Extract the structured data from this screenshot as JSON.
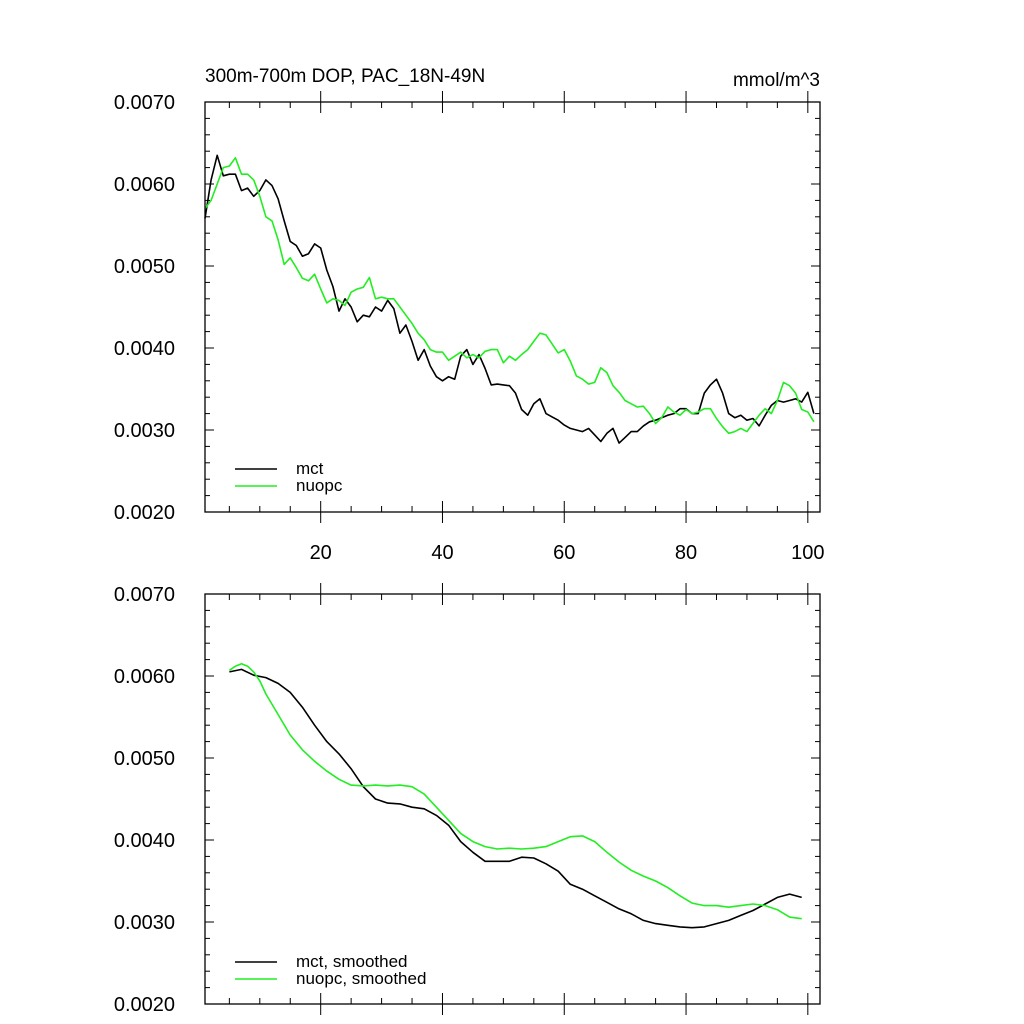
{
  "chart_data": [
    {
      "type": "line",
      "title": "300m-700m DOP, PAC_18N-49N",
      "units": "mmol/m^3",
      "xlim": [
        1,
        102
      ],
      "ylim": [
        0.002,
        0.007
      ],
      "x_ticks": [
        20,
        40,
        60,
        80,
        100
      ],
      "x_tick_labels": [
        "20",
        "40",
        "60",
        "80",
        "100"
      ],
      "y_ticks": [
        0.002,
        0.003,
        0.004,
        0.005,
        0.006,
        0.007
      ],
      "y_tick_labels": [
        "0.0020",
        "0.0030",
        "0.0040",
        "0.0050",
        "0.0060",
        "0.0070"
      ],
      "legend_position": "bottom-left",
      "series": [
        {
          "name": "mct",
          "color": "#000000",
          "x": [
            1,
            2,
            3,
            4,
            5,
            6,
            7,
            8,
            9,
            10,
            11,
            12,
            13,
            14,
            15,
            16,
            17,
            18,
            19,
            20,
            21,
            22,
            23,
            24,
            25,
            26,
            27,
            28,
            29,
            30,
            31,
            32,
            33,
            34,
            35,
            36,
            37,
            38,
            39,
            40,
            41,
            42,
            43,
            44,
            45,
            46,
            47,
            48,
            49,
            50,
            51,
            52,
            53,
            54,
            55,
            56,
            57,
            58,
            59,
            60,
            61,
            62,
            63,
            64,
            65,
            66,
            67,
            68,
            69,
            70,
            71,
            72,
            73,
            74,
            75,
            76,
            77,
            78,
            79,
            80,
            81,
            82,
            83,
            84,
            85,
            86,
            87,
            88,
            89,
            90,
            91,
            92,
            93,
            94,
            95,
            96,
            97,
            98,
            99,
            100,
            101
          ],
          "values": [
            0.00558,
            0.00605,
            0.00635,
            0.0061,
            0.00612,
            0.00612,
            0.00592,
            0.00595,
            0.00585,
            0.00592,
            0.00605,
            0.00598,
            0.00582,
            0.00555,
            0.0053,
            0.00525,
            0.00512,
            0.00515,
            0.00527,
            0.00522,
            0.00495,
            0.00475,
            0.00445,
            0.0046,
            0.0045,
            0.00432,
            0.0044,
            0.00438,
            0.0045,
            0.00445,
            0.00458,
            0.00448,
            0.00418,
            0.00428,
            0.00408,
            0.00385,
            0.00398,
            0.00378,
            0.00365,
            0.0036,
            0.00365,
            0.00362,
            0.0039,
            0.00398,
            0.0038,
            0.00392,
            0.00375,
            0.00355,
            0.00356,
            0.00355,
            0.00354,
            0.00345,
            0.00325,
            0.00318,
            0.00332,
            0.00338,
            0.0032,
            0.00316,
            0.00312,
            0.00306,
            0.00302,
            0.003,
            0.00298,
            0.00302,
            0.00294,
            0.00286,
            0.00296,
            0.00302,
            0.00284,
            0.00291,
            0.00298,
            0.00298,
            0.00305,
            0.0031,
            0.00312,
            0.00315,
            0.00318,
            0.0032,
            0.00326,
            0.00326,
            0.0032,
            0.0032,
            0.00345,
            0.00355,
            0.00362,
            0.00345,
            0.0032,
            0.00315,
            0.00318,
            0.00312,
            0.00314,
            0.00305,
            0.00318,
            0.0033,
            0.00336,
            0.00334,
            0.00336,
            0.00338,
            0.00334,
            0.00346,
            0.0032
          ]
        },
        {
          "name": "nuopc",
          "color": "#22ee22",
          "x": [
            1,
            2,
            3,
            4,
            5,
            6,
            7,
            8,
            9,
            10,
            11,
            12,
            13,
            14,
            15,
            16,
            17,
            18,
            19,
            20,
            21,
            22,
            23,
            24,
            25,
            26,
            27,
            28,
            29,
            30,
            31,
            32,
            33,
            34,
            35,
            36,
            37,
            38,
            39,
            40,
            41,
            42,
            43,
            44,
            45,
            46,
            47,
            48,
            49,
            50,
            51,
            52,
            53,
            54,
            55,
            56,
            57,
            58,
            59,
            60,
            61,
            62,
            63,
            64,
            65,
            66,
            67,
            68,
            69,
            70,
            71,
            72,
            73,
            74,
            75,
            76,
            77,
            78,
            79,
            80,
            81,
            82,
            83,
            84,
            85,
            86,
            87,
            88,
            89,
            90,
            91,
            92,
            93,
            94,
            95,
            96,
            97,
            98,
            99,
            100,
            101
          ],
          "values": [
            0.0057,
            0.0058,
            0.006,
            0.0062,
            0.00622,
            0.00632,
            0.00612,
            0.00612,
            0.00605,
            0.00585,
            0.0056,
            0.00555,
            0.00532,
            0.00502,
            0.0051,
            0.00498,
            0.00485,
            0.00482,
            0.0049,
            0.00472,
            0.00455,
            0.0046,
            0.00458,
            0.00452,
            0.00468,
            0.00472,
            0.00474,
            0.00486,
            0.0046,
            0.00462,
            0.0046,
            0.0046,
            0.0045,
            0.0044,
            0.0043,
            0.00418,
            0.0041,
            0.00398,
            0.00395,
            0.00395,
            0.00385,
            0.0039,
            0.00395,
            0.00388,
            0.00392,
            0.00388,
            0.00396,
            0.00398,
            0.00398,
            0.00382,
            0.0039,
            0.00385,
            0.00392,
            0.00398,
            0.00408,
            0.00418,
            0.00416,
            0.00405,
            0.00394,
            0.00398,
            0.00384,
            0.00366,
            0.00362,
            0.00356,
            0.00358,
            0.00376,
            0.0037,
            0.00354,
            0.00346,
            0.00336,
            0.00332,
            0.00328,
            0.00329,
            0.0032,
            0.00308,
            0.00315,
            0.00328,
            0.00322,
            0.00318,
            0.00325,
            0.0032,
            0.00322,
            0.00326,
            0.00326,
            0.00314,
            0.00304,
            0.00296,
            0.00298,
            0.00302,
            0.00298,
            0.00308,
            0.00318,
            0.00326,
            0.0032,
            0.00336,
            0.00358,
            0.00354,
            0.00345,
            0.00325,
            0.00322,
            0.0031
          ]
        }
      ]
    },
    {
      "type": "line",
      "title": "",
      "units": "",
      "xlim": [
        1,
        102
      ],
      "ylim": [
        0.002,
        0.007
      ],
      "x_ticks": [
        20,
        40,
        60,
        80,
        100
      ],
      "x_tick_labels": [],
      "y_ticks": [
        0.002,
        0.003,
        0.004,
        0.005,
        0.006,
        0.007
      ],
      "y_tick_labels": [
        "0.0020",
        "0.0030",
        "0.0040",
        "0.0050",
        "0.0060",
        "0.0070"
      ],
      "legend_position": "bottom-left",
      "series": [
        {
          "name": "mct, smoothed",
          "color": "#000000",
          "x": [
            5,
            7,
            9,
            11,
            13,
            15,
            17,
            19,
            21,
            23,
            25,
            27,
            29,
            31,
            33,
            35,
            37,
            39,
            41,
            43,
            45,
            47,
            49,
            51,
            53,
            55,
            57,
            59,
            61,
            63,
            65,
            67,
            69,
            71,
            73,
            75,
            77,
            79,
            81,
            83,
            85,
            87,
            89,
            91,
            93,
            95,
            97,
            99
          ],
          "values": [
            0.00605,
            0.00608,
            0.00601,
            0.00598,
            0.00591,
            0.0058,
            0.00562,
            0.0054,
            0.0052,
            0.00505,
            0.00487,
            0.00465,
            0.0045,
            0.00445,
            0.00444,
            0.0044,
            0.00438,
            0.0043,
            0.00418,
            0.00398,
            0.00385,
            0.00374,
            0.00374,
            0.00374,
            0.00379,
            0.00378,
            0.00371,
            0.00362,
            0.00346,
            0.0034,
            0.00332,
            0.00324,
            0.00316,
            0.0031,
            0.00302,
            0.00298,
            0.00296,
            0.00294,
            0.00293,
            0.00294,
            0.00298,
            0.00302,
            0.00308,
            0.00314,
            0.00322,
            0.0033,
            0.00334,
            0.0033
          ]
        },
        {
          "name": "nuopc, smoothed",
          "color": "#22ee22",
          "x": [
            5,
            6,
            7,
            8,
            9,
            10,
            11,
            13,
            15,
            17,
            19,
            21,
            23,
            25,
            27,
            29,
            31,
            33,
            35,
            37,
            39,
            41,
            43,
            45,
            47,
            49,
            51,
            53,
            55,
            57,
            59,
            61,
            63,
            65,
            67,
            69,
            71,
            73,
            75,
            77,
            79,
            81,
            83,
            85,
            87,
            89,
            91,
            93,
            95,
            97,
            99
          ],
          "values": [
            0.00607,
            0.00612,
            0.00615,
            0.00612,
            0.00605,
            0.00594,
            0.00578,
            0.00553,
            0.00528,
            0.0051,
            0.00496,
            0.00484,
            0.00474,
            0.00467,
            0.00466,
            0.00467,
            0.00466,
            0.00467,
            0.00465,
            0.00456,
            0.0044,
            0.00424,
            0.00408,
            0.00398,
            0.00392,
            0.00389,
            0.0039,
            0.00389,
            0.0039,
            0.00392,
            0.00398,
            0.00404,
            0.00405,
            0.00398,
            0.00385,
            0.00373,
            0.00363,
            0.00356,
            0.0035,
            0.00342,
            0.00332,
            0.00323,
            0.0032,
            0.0032,
            0.00318,
            0.0032,
            0.00322,
            0.0032,
            0.00315,
            0.00306,
            0.00304
          ]
        }
      ]
    }
  ]
}
